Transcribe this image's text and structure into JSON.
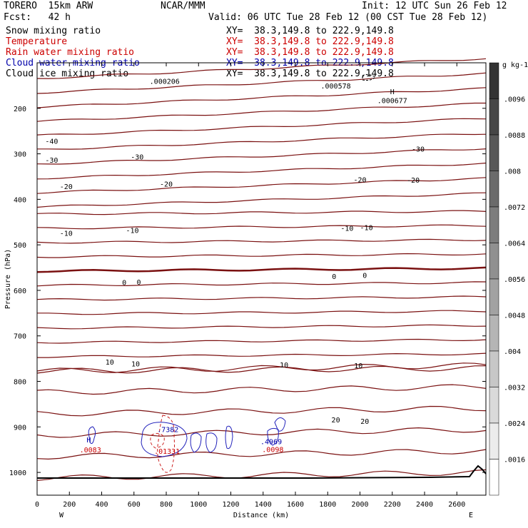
{
  "header": {
    "model": "TORERO  15km ARW",
    "center": "NCAR/MMM",
    "init": "Init: 12 UTC Sun 26 Feb 12",
    "fcst": "Fcst:   42 h",
    "valid": "Valid: 06 UTC Tue 28 Feb 12 (00 CST Tue 28 Feb 12)"
  },
  "fields": [
    {
      "name": "Snow mixing ratio",
      "xy": "XY=  38.3,149.8 to 222.9,149.8",
      "color": "#000000"
    },
    {
      "name": "Temperature",
      "xy": "XY=  38.3,149.8 to 222.9,149.8",
      "color": "#cc0000"
    },
    {
      "name": "Rain water mixing ratio",
      "xy": "XY=  38.3,149.8 to 222.9,149.8",
      "color": "#cc0000"
    },
    {
      "name": "Cloud water mixing ratio",
      "xy": "XY=  38.3,149.8 to 222.9,149.8",
      "color": "#0000aa"
    },
    {
      "name": "Cloud ice mixing ratio",
      "xy": "XY=  38.3,149.8 to 222.9,149.8",
      "color": "#000000"
    }
  ],
  "chart_data": {
    "type": "contour",
    "xlabel": "Distance (km)",
    "ylabel": "Pressure (hPa)",
    "xlim": [
      0,
      2780
    ],
    "ylim": [
      1050,
      100
    ],
    "xticks": [
      0,
      200,
      400,
      600,
      800,
      1000,
      1200,
      1400,
      1600,
      1800,
      2000,
      2200,
      2400,
      2600
    ],
    "yticks": [
      200,
      300,
      400,
      500,
      600,
      700,
      800,
      900,
      1000
    ],
    "left_end": "W",
    "right_end": "E",
    "colorbar": {
      "unit": "g kg-1",
      "ticks": [
        ".0096",
        ".0088",
        ".008",
        ".0072",
        ".0064",
        ".0056",
        ".0048",
        ".004",
        ".0032",
        ".0024",
        ".0016"
      ],
      "dark_color": "#333333",
      "light_color": "#ffffff"
    },
    "temperature_color": "#7a1010",
    "temperature_isotherm_labels": [
      {
        "x": 90,
        "p": 272,
        "text": "-40"
      },
      {
        "x": 90,
        "p": 313,
        "text": "-30"
      },
      {
        "x": 620,
        "p": 306,
        "text": "-30"
      },
      {
        "x": 2360,
        "p": 289,
        "text": "-30"
      },
      {
        "x": 180,
        "p": 371,
        "text": "-20"
      },
      {
        "x": 800,
        "p": 366,
        "text": "-20"
      },
      {
        "x": 2000,
        "p": 356,
        "text": "-20"
      },
      {
        "x": 2330,
        "p": 357,
        "text": "-20"
      },
      {
        "x": 180,
        "p": 474,
        "text": "-10"
      },
      {
        "x": 590,
        "p": 468,
        "text": "-10"
      },
      {
        "x": 1920,
        "p": 463,
        "text": "-10"
      },
      {
        "x": 2040,
        "p": 461,
        "text": "-10"
      },
      {
        "x": 540,
        "p": 582,
        "text": "0"
      },
      {
        "x": 630,
        "p": 581,
        "text": "0"
      },
      {
        "x": 1840,
        "p": 569,
        "text": "0"
      },
      {
        "x": 2030,
        "p": 566,
        "text": "0"
      },
      {
        "x": 450,
        "p": 757,
        "text": "10"
      },
      {
        "x": 610,
        "p": 761,
        "text": "10"
      },
      {
        "x": 1530,
        "p": 763,
        "text": "10"
      },
      {
        "x": 1990,
        "p": 765,
        "text": "10"
      },
      {
        "x": 1850,
        "p": 884,
        "text": "20"
      },
      {
        "x": 2030,
        "p": 887,
        "text": "20"
      }
    ],
    "annotations": [
      {
        "x": 790,
        "p": 140,
        "text": ".000206",
        "color": "#000000"
      },
      {
        "x": 1850,
        "p": 150,
        "text": ".000578",
        "color": "#000000"
      },
      {
        "x": 2200,
        "p": 163,
        "text": "H",
        "color": "#000000"
      },
      {
        "x": 2200,
        "p": 182,
        "text": ".000677",
        "color": "#000000"
      },
      {
        "x": 810,
        "p": 905,
        "text": ".7382",
        "color": "#0000aa"
      },
      {
        "x": 805,
        "p": 953,
        "text": ".01331",
        "color": "#cc0000"
      },
      {
        "x": 320,
        "p": 928,
        "text": "H",
        "color": "#0000aa"
      },
      {
        "x": 330,
        "p": 950,
        "text": ".0083",
        "color": "#cc0000"
      },
      {
        "x": 1450,
        "p": 932,
        "text": ".4969",
        "color": "#0000aa"
      },
      {
        "x": 1460,
        "p": 949,
        "text": ".0098",
        "color": "#cc0000"
      }
    ]
  }
}
